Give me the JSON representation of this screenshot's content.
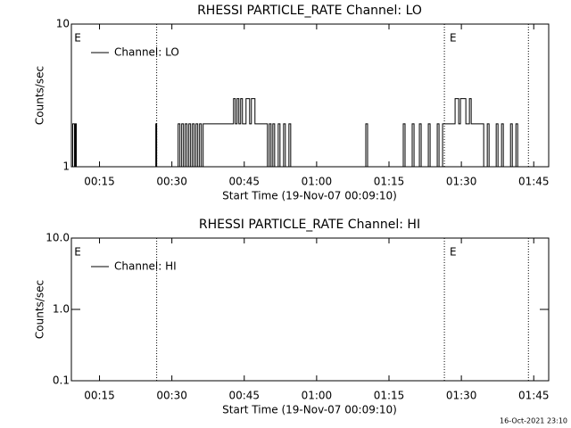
{
  "chart_data": [
    {
      "type": "line",
      "title": "RHESSI PARTICLE_RATE Channel: LO",
      "xlabel": "Start Time (19-Nov-07 00:09:10)",
      "ylabel": "Counts/sec",
      "log_y": true,
      "xlim": [
        9.17,
        108.1
      ],
      "ylim": [
        1,
        10
      ],
      "yticks": [
        1,
        10
      ],
      "xticks": [
        {
          "value": 15,
          "label": "00:15"
        },
        {
          "value": 30,
          "label": "00:30"
        },
        {
          "value": 45,
          "label": "00:45"
        },
        {
          "value": 60,
          "label": "01:00"
        },
        {
          "value": 75,
          "label": "01:15"
        },
        {
          "value": 90,
          "label": "01:30"
        },
        {
          "value": 105,
          "label": "01:45"
        }
      ],
      "vlines": [
        26.85,
        86.48,
        103.9
      ],
      "annotations": [
        {
          "text": "E",
          "x": 9.4
        },
        {
          "text": "E",
          "x": 87.2
        }
      ],
      "legend": "upper left",
      "series": [
        {
          "name": "Channel: LO",
          "color": "#000000",
          "x": [
            9.17,
            9.44,
            9.81,
            10.0,
            10.19,
            26.48,
            26.67,
            26.85,
            31.3,
            31.67,
            32.04,
            32.41,
            32.78,
            33.15,
            33.52,
            33.89,
            34.26,
            34.63,
            35.0,
            35.37,
            35.74,
            36.11,
            36.48,
            42.78,
            43.15,
            43.52,
            43.89,
            44.26,
            44.63,
            45.37,
            46.11,
            46.48,
            47.22,
            49.81,
            50.19,
            50.56,
            50.93,
            51.3,
            52.04,
            52.41,
            53.15,
            53.52,
            54.26,
            54.63,
            70.19,
            70.56,
            77.96,
            78.33,
            79.81,
            80.19,
            81.3,
            81.67,
            83.15,
            83.52,
            85.0,
            85.37,
            86.11,
            88.7,
            89.44,
            89.81,
            90.93,
            91.67,
            92.04,
            94.63,
            95.37,
            95.74,
            97.22,
            97.59,
            98.33,
            98.7,
            100.19,
            100.56,
            101.3,
            101.67,
            108.1
          ],
          "values": [
            1,
            2,
            1,
            2,
            1,
            1,
            2,
            1,
            2,
            1,
            2,
            1,
            2,
            1,
            2,
            1,
            2,
            1,
            2,
            1,
            2,
            1,
            2,
            3,
            2,
            3,
            2,
            3,
            2,
            3,
            2,
            3,
            2,
            1,
            2,
            1,
            2,
            1,
            2,
            1,
            2,
            1,
            2,
            1,
            2,
            1,
            2,
            1,
            2,
            1,
            2,
            1,
            2,
            1,
            2,
            1,
            2,
            3,
            2,
            3,
            2,
            3,
            2,
            1,
            2,
            1,
            2,
            1,
            2,
            1,
            2,
            1,
            2,
            1,
            1
          ]
        }
      ]
    },
    {
      "type": "line",
      "title": "RHESSI PARTICLE_RATE Channel: HI",
      "xlabel": "Start Time (19-Nov-07 00:09:10)",
      "ylabel": "Counts/sec",
      "log_y": true,
      "xlim": [
        9.17,
        108.1
      ],
      "ylim": [
        0.1,
        10
      ],
      "yticks": [
        {
          "value": 0.1,
          "label": "0.1"
        },
        {
          "value": 1,
          "label": "1.0"
        },
        {
          "value": 10,
          "label": "10.0"
        }
      ],
      "xticks": [
        {
          "value": 15,
          "label": "00:15"
        },
        {
          "value": 30,
          "label": "00:30"
        },
        {
          "value": 45,
          "label": "00:45"
        },
        {
          "value": 60,
          "label": "01:00"
        },
        {
          "value": 75,
          "label": "01:15"
        },
        {
          "value": 90,
          "label": "01:30"
        },
        {
          "value": 105,
          "label": "01:45"
        }
      ],
      "vlines": [
        26.85,
        86.48,
        103.9
      ],
      "annotations": [
        {
          "text": "E",
          "x": 9.4
        },
        {
          "text": "E",
          "x": 87.2
        }
      ],
      "legend": "upper left",
      "series": [
        {
          "name": "Channel: HI",
          "color": "#000000",
          "x": [],
          "values": []
        }
      ],
      "footer": "16-Oct-2021 23:10"
    }
  ]
}
